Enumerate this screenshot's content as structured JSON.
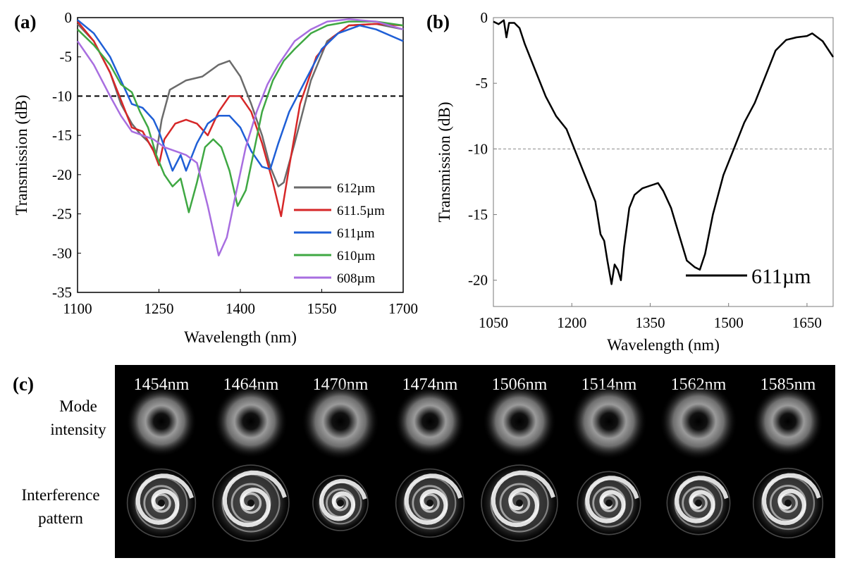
{
  "figure": {
    "panel_a_label": "(a)",
    "panel_b_label": "(b)",
    "panel_c_label": "(c)"
  },
  "chart_data": [
    {
      "id": "a",
      "type": "line",
      "xlabel": "Wavelength (nm)",
      "ylabel": "Transmission (dB)",
      "xlim": [
        1100,
        1700
      ],
      "ylim": [
        -35,
        0
      ],
      "xticks": [
        1100,
        1250,
        1400,
        1550,
        1700
      ],
      "yticks": [
        0,
        -5,
        -10,
        -15,
        -20,
        -25,
        -30,
        -35
      ],
      "reference_line": {
        "y": -10,
        "style": "dashed"
      },
      "legend_position": "bottom-right",
      "series": [
        {
          "name": "612µm",
          "color": "#6b6b6b",
          "x": [
            1100,
            1130,
            1160,
            1180,
            1200,
            1215,
            1230,
            1245,
            1255,
            1270,
            1300,
            1330,
            1360,
            1380,
            1400,
            1420,
            1440,
            1455,
            1470,
            1480,
            1500,
            1530,
            1560,
            1600,
            1650,
            1700
          ],
          "y": [
            -0.8,
            -3,
            -7,
            -11,
            -13.5,
            -14.8,
            -15.8,
            -17.3,
            -13,
            -9.2,
            -8,
            -7.5,
            -6,
            -5.5,
            -7.5,
            -11,
            -15,
            -19,
            -21.5,
            -21,
            -16,
            -8,
            -3,
            -1,
            -0.8,
            -1.5
          ]
        },
        {
          "name": "611.5µm",
          "color": "#d62728",
          "x": [
            1100,
            1130,
            1160,
            1180,
            1200,
            1220,
            1240,
            1250,
            1260,
            1280,
            1300,
            1320,
            1340,
            1360,
            1380,
            1400,
            1420,
            1440,
            1460,
            1475,
            1490,
            1510,
            1540,
            1570,
            1600,
            1650,
            1700
          ],
          "y": [
            -0.5,
            -3,
            -7,
            -10.5,
            -14,
            -14.5,
            -17,
            -18.8,
            -15.5,
            -13.5,
            -13,
            -13.5,
            -15,
            -12,
            -10,
            -10,
            -12,
            -16,
            -21,
            -25.3,
            -19,
            -11,
            -5,
            -2.5,
            -1,
            -0.8,
            -1
          ]
        },
        {
          "name": "611µm",
          "color": "#1f5fd6",
          "x": [
            1100,
            1130,
            1160,
            1180,
            1200,
            1220,
            1240,
            1250,
            1260,
            1275,
            1290,
            1300,
            1320,
            1340,
            1360,
            1380,
            1400,
            1420,
            1440,
            1455,
            1470,
            1490,
            1520,
            1550,
            1580,
            1620,
            1650,
            1700
          ],
          "y": [
            -0.3,
            -2,
            -5,
            -8,
            -11,
            -11.5,
            -13,
            -14.5,
            -16.5,
            -19.5,
            -17.5,
            -19.5,
            -16,
            -13.5,
            -12.5,
            -12.5,
            -14,
            -17,
            -19,
            -19.3,
            -16,
            -12,
            -8,
            -4,
            -2,
            -1,
            -1.5,
            -3
          ]
        },
        {
          "name": "610µm",
          "color": "#3fa843",
          "x": [
            1100,
            1130,
            1160,
            1180,
            1200,
            1215,
            1230,
            1245,
            1260,
            1275,
            1290,
            1305,
            1320,
            1335,
            1350,
            1365,
            1380,
            1395,
            1410,
            1425,
            1440,
            1460,
            1480,
            1500,
            1530,
            1560,
            1600,
            1650,
            1700
          ],
          "y": [
            -1.5,
            -3.5,
            -6,
            -8.5,
            -9.5,
            -12,
            -14,
            -17.5,
            -20,
            -21.5,
            -20.5,
            -24.8,
            -21,
            -16.5,
            -15.5,
            -16.5,
            -19.5,
            -24,
            -22,
            -17,
            -12,
            -8,
            -5.5,
            -4,
            -2,
            -1,
            -0.5,
            -0.5,
            -1
          ]
        },
        {
          "name": "608µm",
          "color": "#a86ee0",
          "x": [
            1100,
            1130,
            1160,
            1180,
            1200,
            1220,
            1240,
            1260,
            1280,
            1300,
            1320,
            1340,
            1360,
            1375,
            1390,
            1410,
            1430,
            1450,
            1470,
            1500,
            1530,
            1560,
            1600,
            1650,
            1700
          ],
          "y": [
            -3,
            -6,
            -10,
            -12.5,
            -14.5,
            -15,
            -15.5,
            -16.5,
            -17,
            -17.5,
            -18.5,
            -24,
            -30.3,
            -28,
            -23,
            -16.5,
            -12,
            -8.5,
            -6,
            -3,
            -1.5,
            -0.5,
            -0.2,
            -0.5,
            -1.5
          ]
        }
      ]
    },
    {
      "id": "b",
      "type": "line",
      "xlabel": "Wavelength (nm)",
      "ylabel": "Transmission (dB)",
      "xlim": [
        1050,
        1700
      ],
      "ylim": [
        -22,
        0
      ],
      "xticks": [
        1050,
        1200,
        1350,
        1500,
        1650
      ],
      "yticks": [
        0,
        -5,
        -10,
        -15,
        -20
      ],
      "reference_line": {
        "y": -10,
        "style": "dashed"
      },
      "legend_position": "bottom-right",
      "series": [
        {
          "name": "611µm",
          "color": "#000000",
          "x": [
            1050,
            1060,
            1070,
            1075,
            1080,
            1090,
            1100,
            1110,
            1130,
            1150,
            1170,
            1190,
            1210,
            1230,
            1245,
            1255,
            1262,
            1268,
            1276,
            1282,
            1288,
            1294,
            1300,
            1310,
            1320,
            1335,
            1350,
            1365,
            1375,
            1390,
            1405,
            1420,
            1435,
            1445,
            1455,
            1470,
            1490,
            1510,
            1530,
            1550,
            1570,
            1590,
            1610,
            1630,
            1650,
            1660,
            1680,
            1700
          ],
          "y": [
            -0.3,
            -0.5,
            -0.2,
            -1.5,
            -0.4,
            -0.4,
            -0.8,
            -2,
            -4,
            -6,
            -7.5,
            -8.5,
            -10.5,
            -12.5,
            -14,
            -16.5,
            -17,
            -18.5,
            -20.3,
            -18.8,
            -19.2,
            -20,
            -17.5,
            -14.5,
            -13.5,
            -13,
            -12.8,
            -12.6,
            -13.2,
            -14.5,
            -16.5,
            -18.5,
            -19,
            -19.2,
            -18,
            -15,
            -12,
            -10,
            -8,
            -6.5,
            -4.5,
            -2.5,
            -1.7,
            -1.5,
            -1.4,
            -1.2,
            -1.8,
            -3
          ]
        }
      ]
    }
  ],
  "panel_c": {
    "wavelengths": [
      "1454nm",
      "1464nm",
      "1470nm",
      "1474nm",
      "1506nm",
      "1514nm",
      "1562nm",
      "1585nm"
    ],
    "row_labels": {
      "mode_line1": "Mode",
      "mode_line2": "intensity",
      "interference_line1": "Interference",
      "interference_line2": "pattern"
    }
  }
}
